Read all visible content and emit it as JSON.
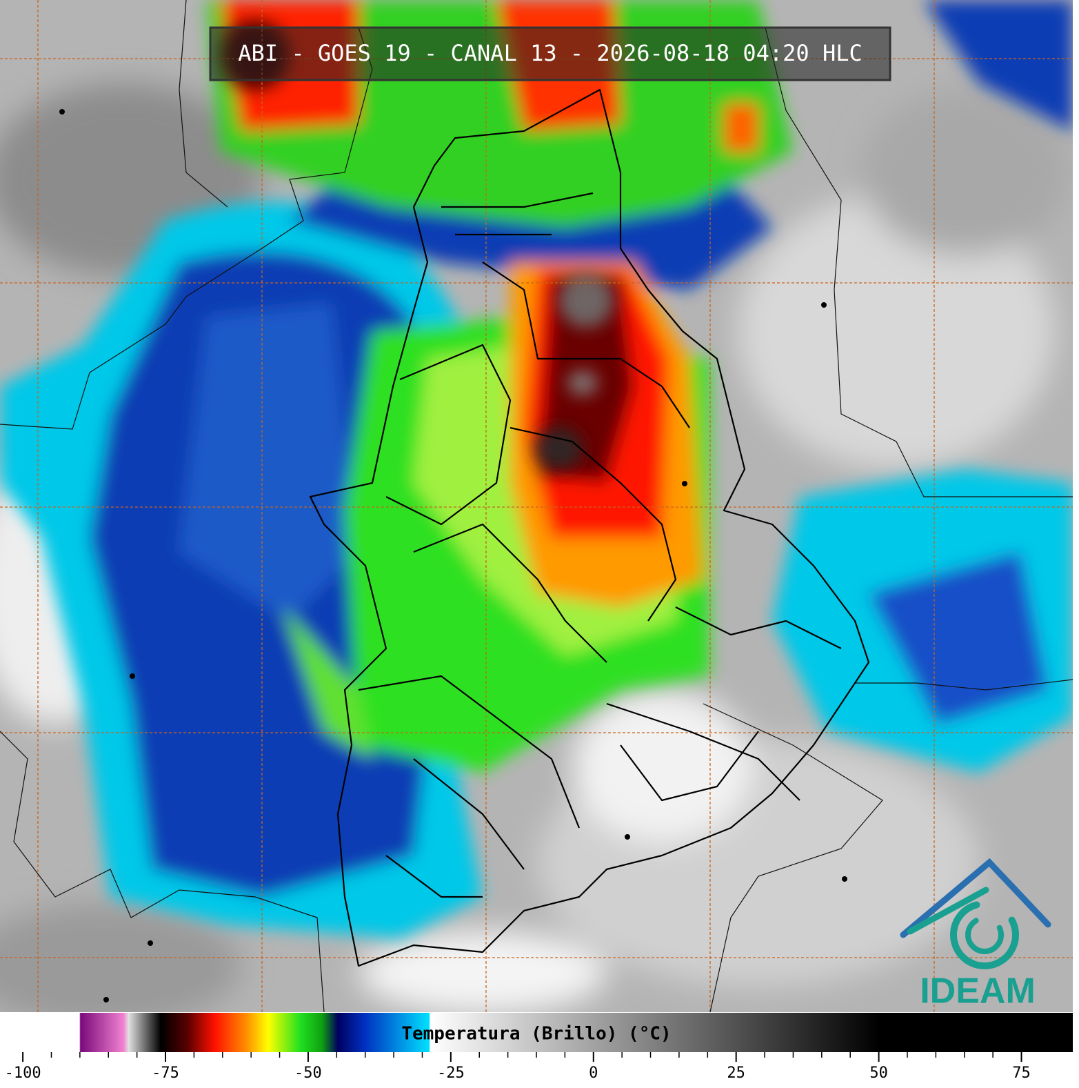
{
  "header": {
    "title": "ABI - GOES 19 - CANAL 13 - 2026-08-18 04:20 HLC"
  },
  "colorbar": {
    "label": "Temperatura (Brillo) (°C)",
    "xlim": [
      -104,
      84
    ],
    "xticks": [
      -100,
      -75,
      -50,
      -25,
      0,
      25,
      50,
      75
    ]
  },
  "logo": {
    "text": "IDEAM"
  }
}
